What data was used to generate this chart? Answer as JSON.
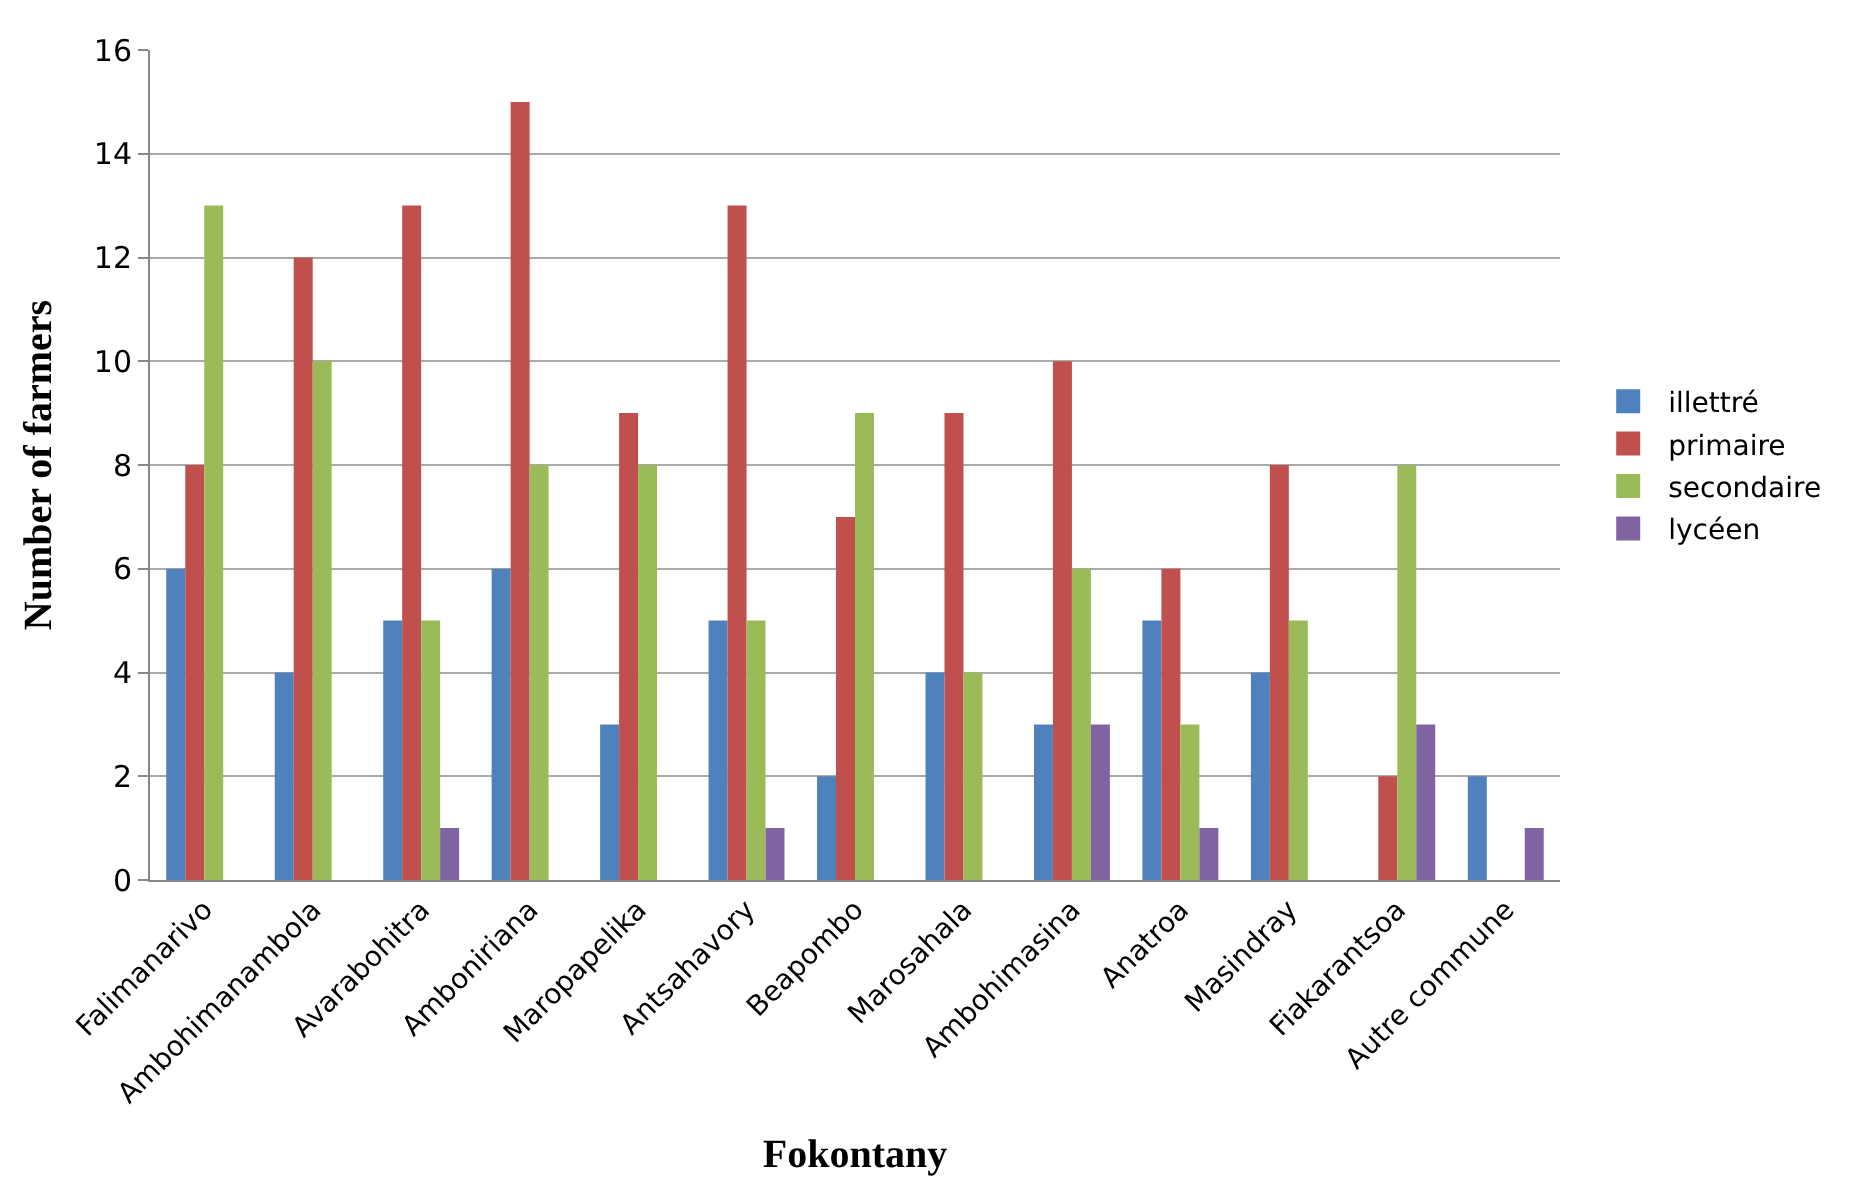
{
  "chart_data": {
    "type": "bar",
    "xlabel": "Fokontany",
    "ylabel": "Number of farmers",
    "categories": [
      "Falimanarivo",
      "Ambohimanambola",
      "Avarabohitra",
      "Amboniriana",
      "Maropapelika",
      "Antsahavory",
      "Beapombo",
      "Marosahala",
      "Ambohimasina",
      "Anatroa",
      "Masindray",
      "Fiakarantsoa",
      "Autre commune"
    ],
    "series": [
      {
        "name": "illettré",
        "color": "#4f81bd",
        "values": [
          6,
          4,
          5,
          6,
          3,
          5,
          2,
          4,
          3,
          5,
          4,
          null,
          2
        ]
      },
      {
        "name": "primaire",
        "color": "#c0504d",
        "values": [
          8,
          12,
          13,
          15,
          9,
          13,
          7,
          9,
          10,
          6,
          8,
          2,
          null
        ]
      },
      {
        "name": "secondaire",
        "color": "#9bbb59",
        "values": [
          13,
          10,
          5,
          8,
          8,
          5,
          9,
          4,
          6,
          3,
          5,
          8,
          null
        ]
      },
      {
        "name": "lycéen",
        "color": "#8064a2",
        "values": [
          null,
          null,
          1,
          null,
          null,
          1,
          null,
          null,
          3,
          1,
          null,
          3,
          1
        ]
      }
    ],
    "ylim": [
      0,
      16
    ],
    "yticks": [
      0,
      2,
      4,
      6,
      8,
      10,
      12,
      14,
      16
    ],
    "grid": "y",
    "legend": "right"
  }
}
